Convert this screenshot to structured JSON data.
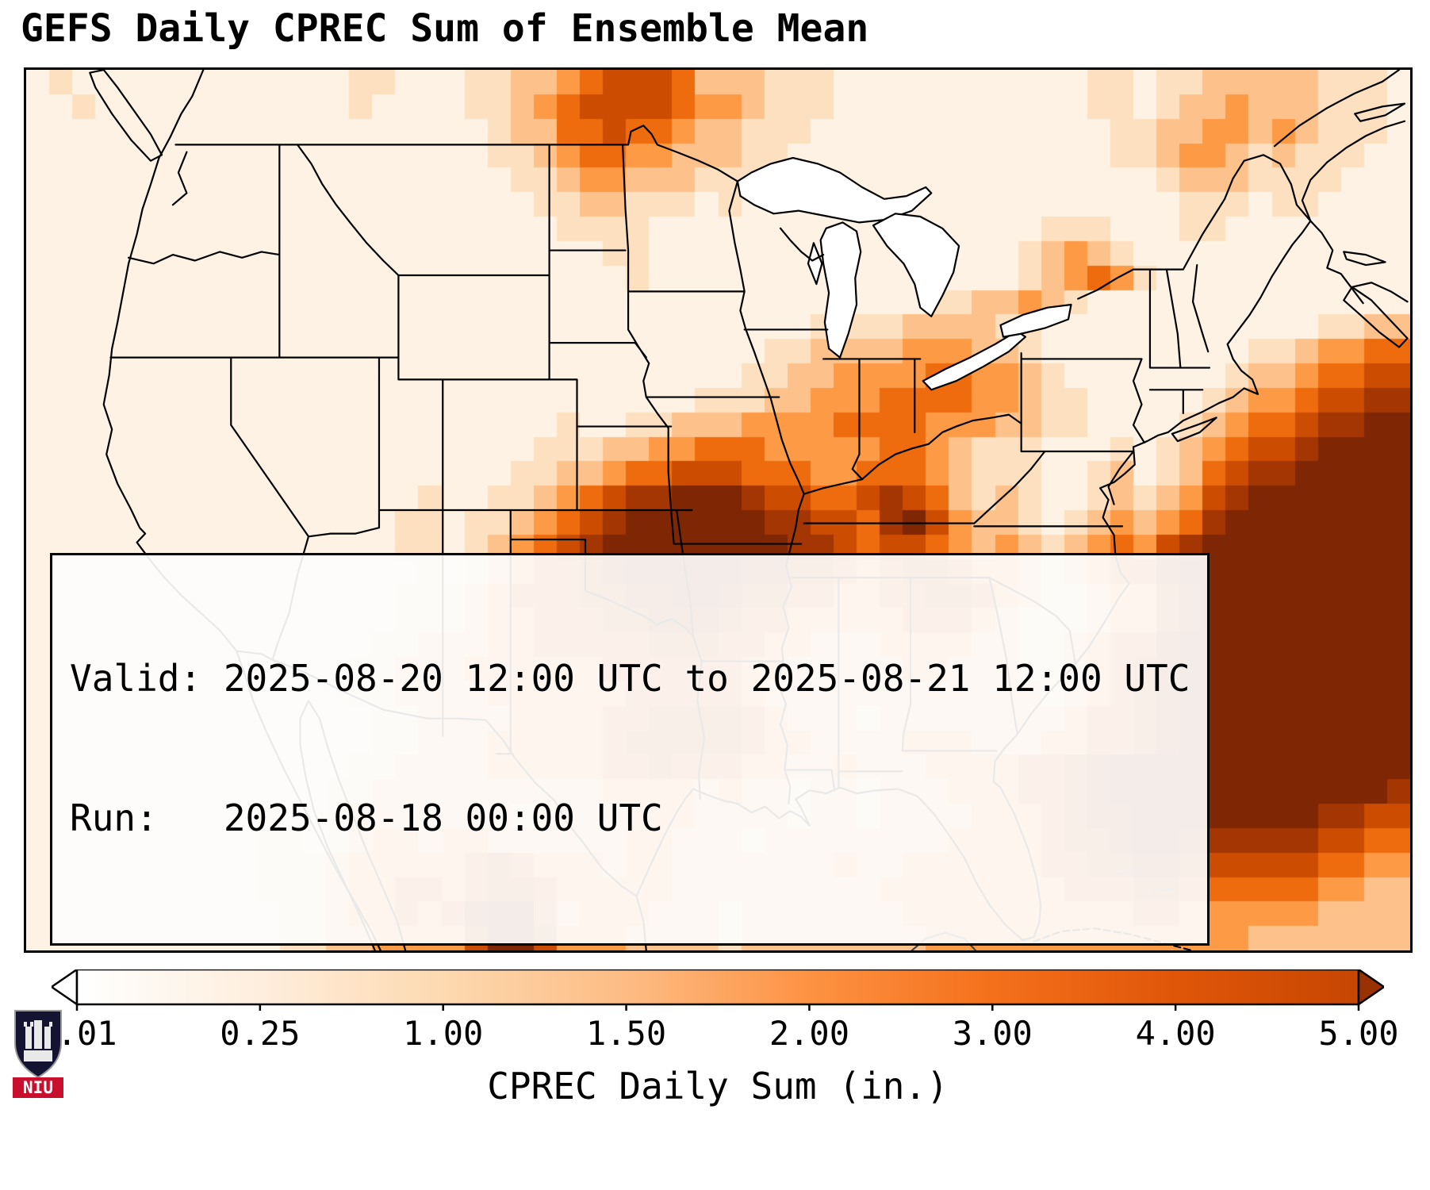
{
  "title": "GEFS Daily CPREC Sum of Ensemble Mean",
  "info_box": {
    "valid_line": "Valid: 2025-08-20 12:00 UTC to 2025-08-21 12:00 UTC",
    "run_line": "Run:   2025-08-18 00:00 UTC"
  },
  "colorbar": {
    "label": "CPREC Daily Sum (in.)",
    "tick_labels": [
      "0.01",
      "0.25",
      "1.00",
      "1.50",
      "2.00",
      "3.00",
      "4.00",
      "5.00"
    ],
    "gradient": [
      "#ffffff",
      "#feeedd",
      "#fdd9b0",
      "#fdbc84",
      "#fd9243",
      "#f4701b",
      "#e05609",
      "#c64602"
    ],
    "under_color": "#ffffff",
    "over_color": "#993203",
    "border_color": "#000000"
  },
  "logo": {
    "text": "NIU",
    "shield_color": "#141432",
    "band_color": "#c8102e"
  },
  "chart_data": {
    "type": "heatmap",
    "title": "GEFS Daily CPREC Sum of Ensemble Mean",
    "units": "inches",
    "region": "CONUS",
    "levels_in": [
      0.01,
      0.25,
      1.0,
      1.5,
      2.0,
      3.0,
      4.0,
      5.0
    ],
    "palette": {
      "0": "#ffffff",
      "1": "#fdf2e3",
      "2": "#fde0c0",
      "3": "#fdc28c",
      "4": "#fd9a45",
      "5": "#ef6c0e",
      "6": "#cc4c02",
      "7": "#a33603",
      "8": "#7f2604"
    },
    "level_meaning": {
      "0": "< 0.01 in",
      "1": "0.01-0.25 in",
      "2": "0.25-1.00 in",
      "3": "1.00-1.50 in",
      "4": "1.50-2.00 in",
      "5": "2.00-3.00 in",
      "6": "3.00-4.00 in",
      "7": "4.00-5.00 in",
      "8": "> 5.00 in"
    },
    "grid_cols": 60,
    "grid_rows": [
      "121111111111112211122334566653332221111111111122122333332221",
      "112111111111112111122345666654432221111111111122123343332221",
      "111111111111111111112335565543322211111111111112233443432221",
      "111111111111111111112234554433322111111111111112234432322211",
      "111111111111111111111223443332221111111111111111123332222111",
      "111111111111111111111122332221211111111111111111112221221111",
      "111111111111111111111112222111111111111111112221112211111111",
      "111111111111111111111111122111111111111111123432111111111111",
      "111111111111111111111111112111111111111111123454211111111111",
      "111111111111111111111111111111111111111223343211111111111111",
      "111111111111111111111111111111111122223333221111111111112233",
      "111111111111111111111111111111112233334443321111111112234455",
      "111111111111111111111111111111122334444554432111111123345566",
      "111111111111111111111111111112223344455554432211111234456677",
      "111111111111111111111112112233344445555444332211112345567788",
      "111111111111111111111122233445554444455432221112123456678888",
      "111111111111111111111223345566655544555432221123123567788888",
      "111111111111111112112234567788876655676532321123234678888888",
      "111111111111111122122345678888887766578643321234345788888888",
      "111111111111111122123456788888888776566543432345467888888888",
      "111111111111111112123455678888877665456654432345578888888888",
      "111111111111111122234555667788766554455665432234467888888888",
      "111111111111111122234455566777655444445554322234467888888888",
      "111111111111111223334455555666554433344443322345578888888888",
      "111111111111112233344444455555544333334433322345678888888888",
      "111111111111112233334444445555543333333333332345678888888888",
      "111111111111111223333444455666654333233333333455678888888888",
      "111111111111111223334444456666654433334443334455678888888888",
      "111111111111112233334444455655544334333444455678888888888888",
      "111111111111122333333333344443433233233344455678888888888887",
      "111111111121123333333233334443333233233334445677888888887766",
      "111111111122123443443333334433323333333344445667887777776655",
      "111111111122234444456544434433333334334444445566776666665544",
      "111111111122234455456654444433333333344444444555665555554433",
      "111111111112234454578853444333233333334444444444554444443333",
      "111111111112233444468864443333233333333444444444444443333333"
    ]
  }
}
